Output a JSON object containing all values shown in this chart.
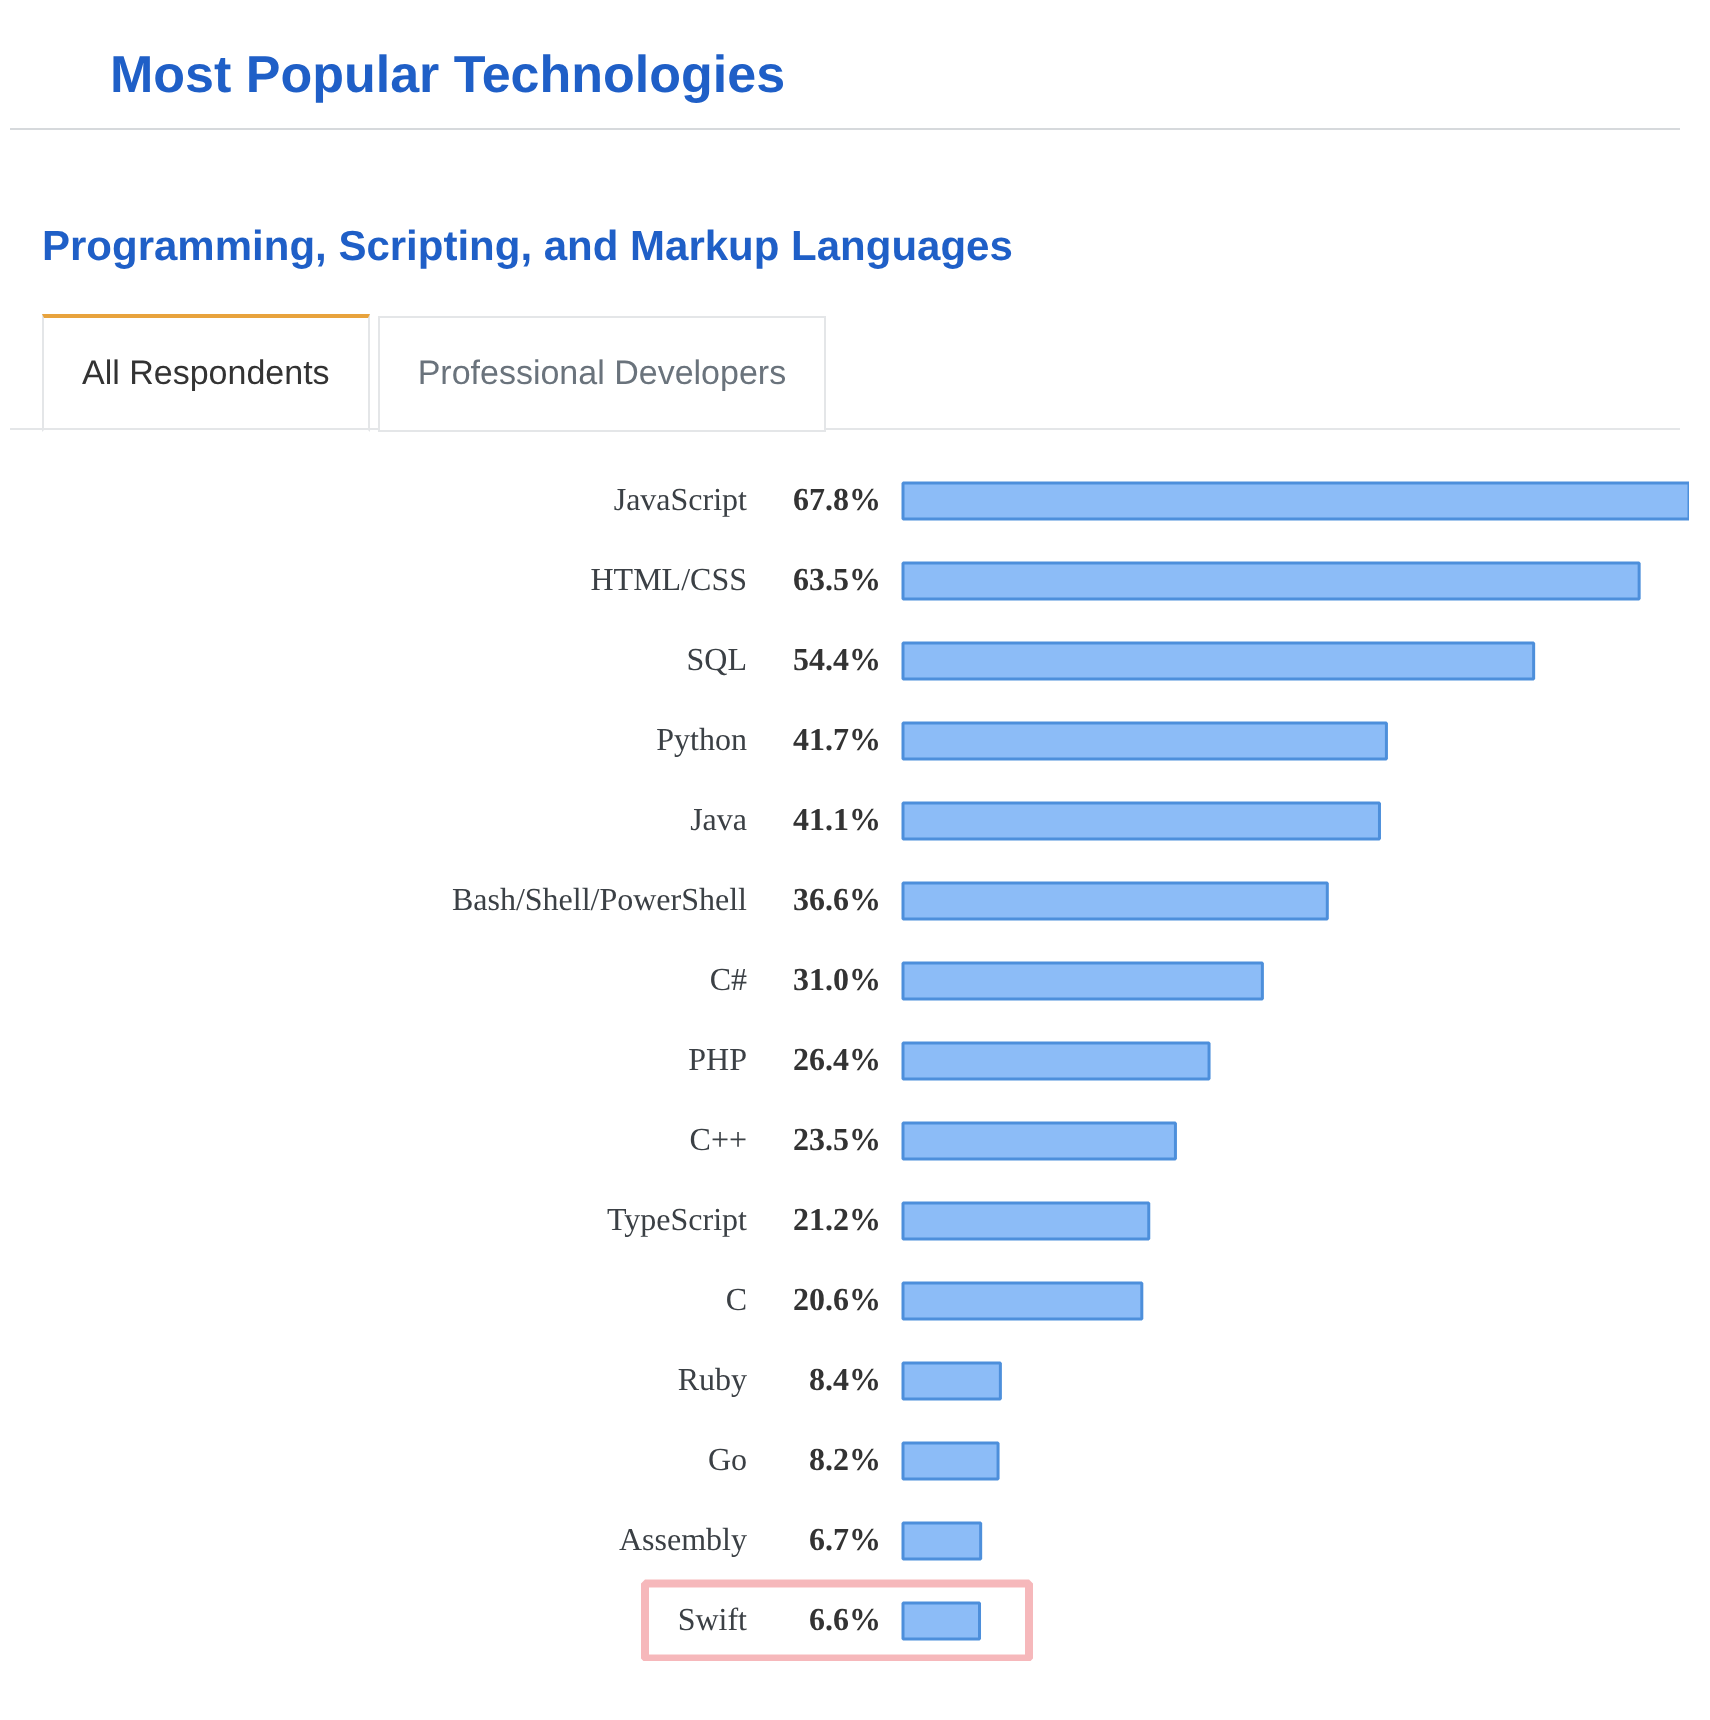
{
  "chart_data": {
    "type": "bar",
    "orientation": "horizontal",
    "title": "Most Popular Technologies",
    "subtitle": "Programming, Scripting, and Markup Languages",
    "annotations": [
      "All Respondents",
      "Professional Developers"
    ],
    "categories": [
      "JavaScript",
      "HTML/CSS",
      "SQL",
      "Python",
      "Java",
      "Bash/Shell/PowerShell",
      "C#",
      "PHP",
      "C++",
      "TypeScript",
      "C",
      "Ruby",
      "Go",
      "Assembly",
      "Swift"
    ],
    "values": [
      67.8,
      63.5,
      54.4,
      41.7,
      41.1,
      36.6,
      31.0,
      26.4,
      23.5,
      21.2,
      20.6,
      8.4,
      8.2,
      6.7,
      6.6
    ],
    "value_labels": [
      "67.8%",
      "63.5%",
      "54.4%",
      "41.7%",
      "41.1%",
      "36.6%",
      "31.0%",
      "26.4%",
      "23.5%",
      "21.2%",
      "20.6%",
      "8.4%",
      "8.2%",
      "6.7%",
      "6.6%"
    ],
    "color": "#8cbcf7",
    "grid": false
  }
}
